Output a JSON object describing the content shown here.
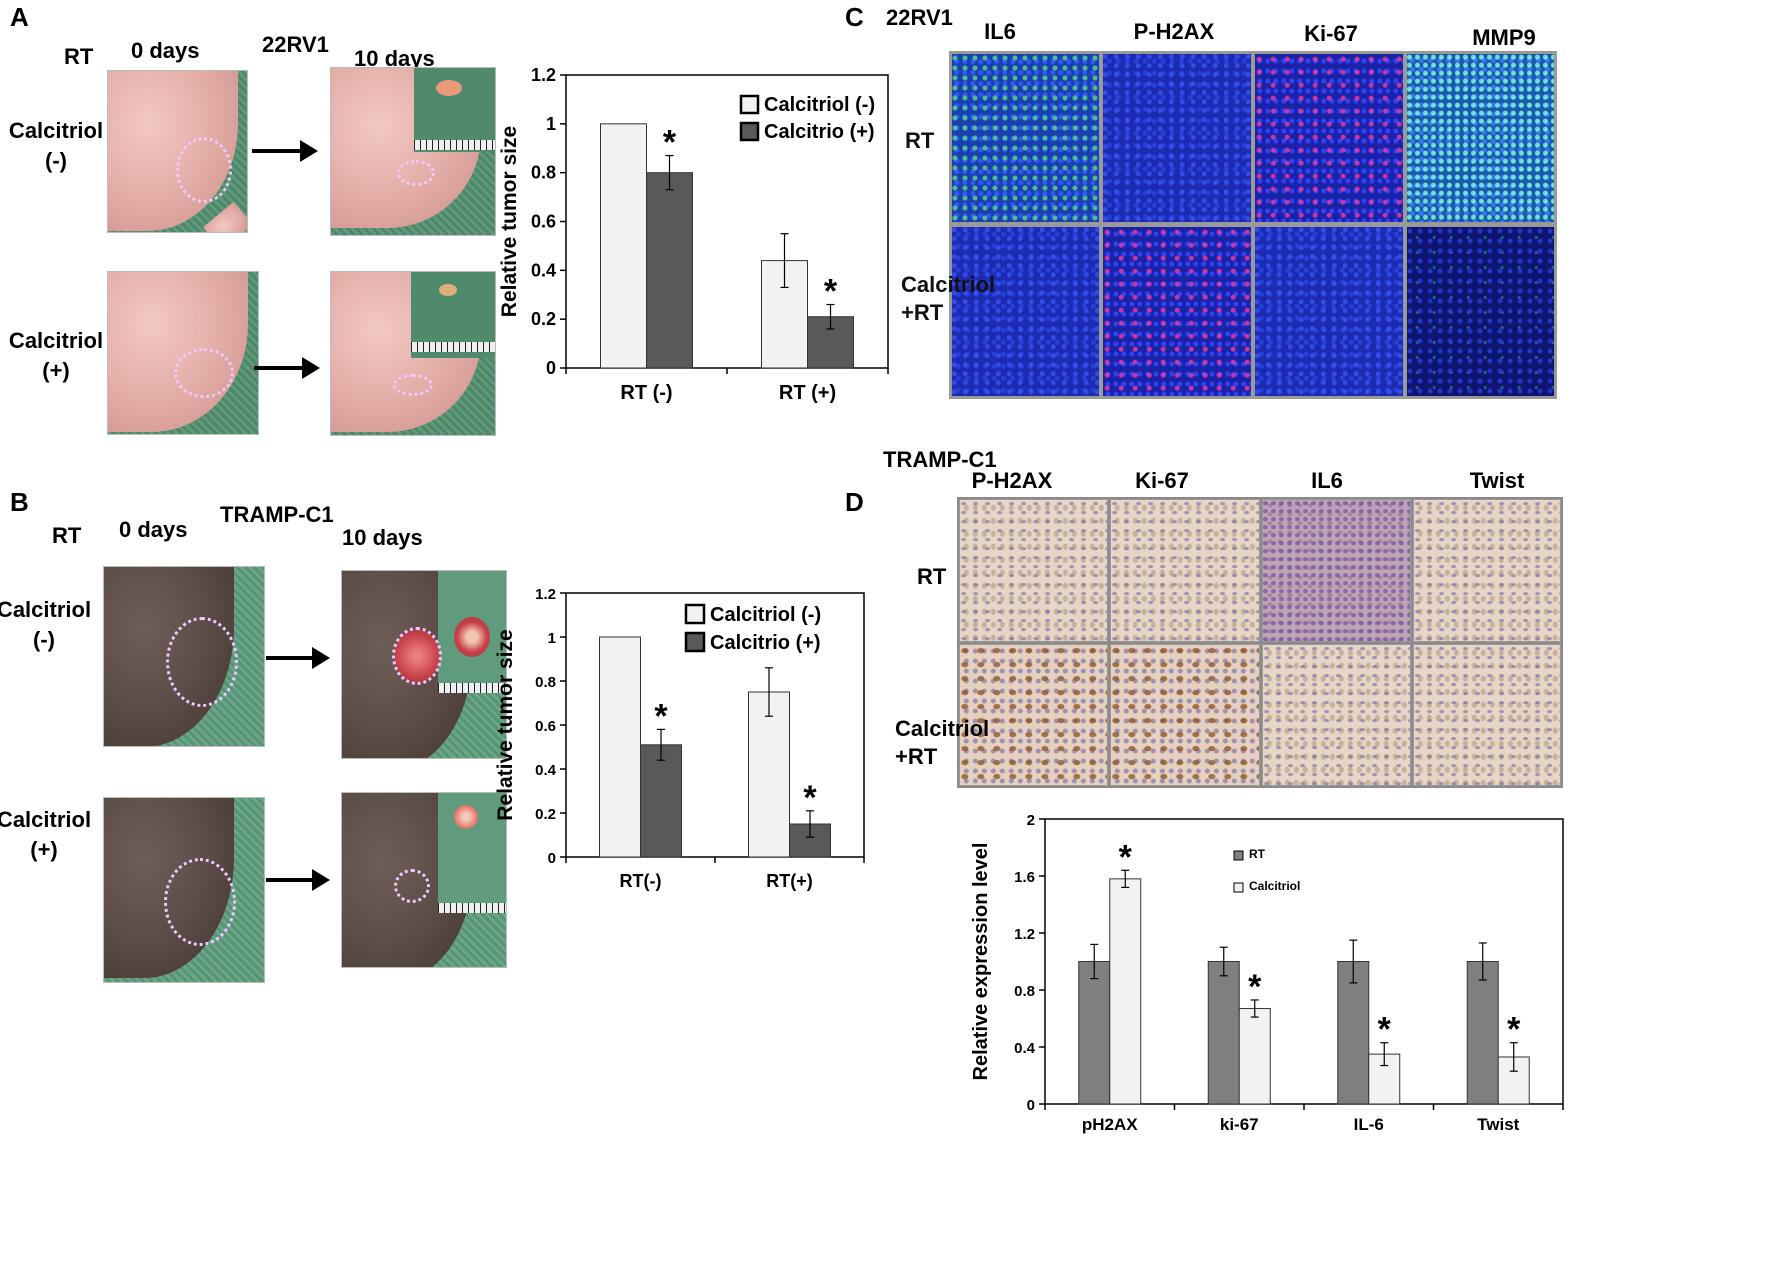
{
  "panels": {
    "A": {
      "letter": "A",
      "cell_line": "22RV1",
      "rt_label": "RT",
      "day0": "0 days",
      "day10": "10 days",
      "row1": [
        "Calcitriol",
        "(-)"
      ],
      "row2": [
        "Calcitriol",
        "(+)"
      ]
    },
    "B": {
      "letter": "B",
      "cell_line": "TRAMP-C1",
      "rt_label": "RT",
      "day0": "0 days",
      "day10": "10 days",
      "row1": [
        "Calcitriol",
        "(-)"
      ],
      "row2": [
        "Calcitriol",
        "(+)"
      ]
    },
    "C": {
      "letter": "C",
      "cell_line": "22RV1",
      "markers": [
        "IL6",
        "P-H2AX",
        "Ki-67",
        "MMP9"
      ],
      "row1": "RT",
      "row2": [
        "Calcitriol",
        "+RT"
      ]
    },
    "D": {
      "letter": "D",
      "cell_line": "TRAMP-C1",
      "markers": [
        "P-H2AX",
        "Ki-67",
        "IL6",
        "Twist"
      ],
      "row1": "RT",
      "row2": [
        "Calcitriol",
        "+RT"
      ]
    }
  },
  "chart_data": [
    {
      "id": "A",
      "type": "bar",
      "categories": [
        "RT (-)",
        "RT (+)"
      ],
      "series": [
        {
          "name": "Calcitriol (-)",
          "values": [
            1.0,
            0.44
          ],
          "errors": [
            0.0,
            0.11
          ],
          "color": "#f2f2f2"
        },
        {
          "name": "Calcitrio (+)",
          "values": [
            0.8,
            0.21
          ],
          "errors": [
            0.07,
            0.05
          ],
          "color": "#595959"
        }
      ],
      "significance": [
        {
          "category": 0,
          "series": 1,
          "mark": "*"
        },
        {
          "category": 1,
          "series": 1,
          "mark": "*"
        }
      ],
      "ylabel": "Relative tumor size",
      "ylim": [
        0,
        1.2
      ],
      "yticks": [
        "0",
        "0.2",
        "0.4",
        "0.6",
        "0.8",
        "1",
        "1.2"
      ],
      "legend": "top-right"
    },
    {
      "id": "B",
      "type": "bar",
      "categories": [
        "RT(-)",
        "RT(+)"
      ],
      "series": [
        {
          "name": "Calcitriol (-)",
          "values": [
            1.0,
            0.75
          ],
          "errors": [
            0.0,
            0.11
          ],
          "color": "#f2f2f2"
        },
        {
          "name": "Calcitrio (+)",
          "values": [
            0.51,
            0.15
          ],
          "errors": [
            0.07,
            0.06
          ],
          "color": "#595959"
        }
      ],
      "significance": [
        {
          "category": 0,
          "series": 1,
          "mark": "*"
        },
        {
          "category": 1,
          "series": 1,
          "mark": "*"
        }
      ],
      "ylabel": "Relative tumor size",
      "ylim": [
        0,
        1.2
      ],
      "yticks": [
        "0",
        "0.2",
        "0.4",
        "0.6",
        "0.8",
        "1",
        "1.2"
      ],
      "legend": "top-right"
    },
    {
      "id": "D",
      "type": "bar",
      "categories": [
        "pH2AX",
        "ki-67",
        "IL-6",
        "Twist"
      ],
      "series": [
        {
          "name": "RT",
          "values": [
            1.0,
            1.0,
            1.0,
            1.0
          ],
          "errors": [
            0.12,
            0.1,
            0.15,
            0.13
          ],
          "color": "#7f7f7f"
        },
        {
          "name": "Calcitriol",
          "values": [
            1.58,
            0.67,
            0.35,
            0.33
          ],
          "errors": [
            0.06,
            0.06,
            0.08,
            0.1
          ],
          "color": "#f2f2f2"
        }
      ],
      "significance": [
        {
          "category": 0,
          "series": 1,
          "mark": "*"
        },
        {
          "category": 1,
          "series": 1,
          "mark": "*"
        },
        {
          "category": 2,
          "series": 1,
          "mark": "*"
        },
        {
          "category": 3,
          "series": 1,
          "mark": "*"
        }
      ],
      "ylabel": "Relative expression level",
      "ylim": [
        0,
        2
      ],
      "yticks": [
        "0",
        "0.4",
        "0.8",
        "1.2",
        "1.6",
        "2"
      ],
      "legend": "top-right"
    }
  ]
}
